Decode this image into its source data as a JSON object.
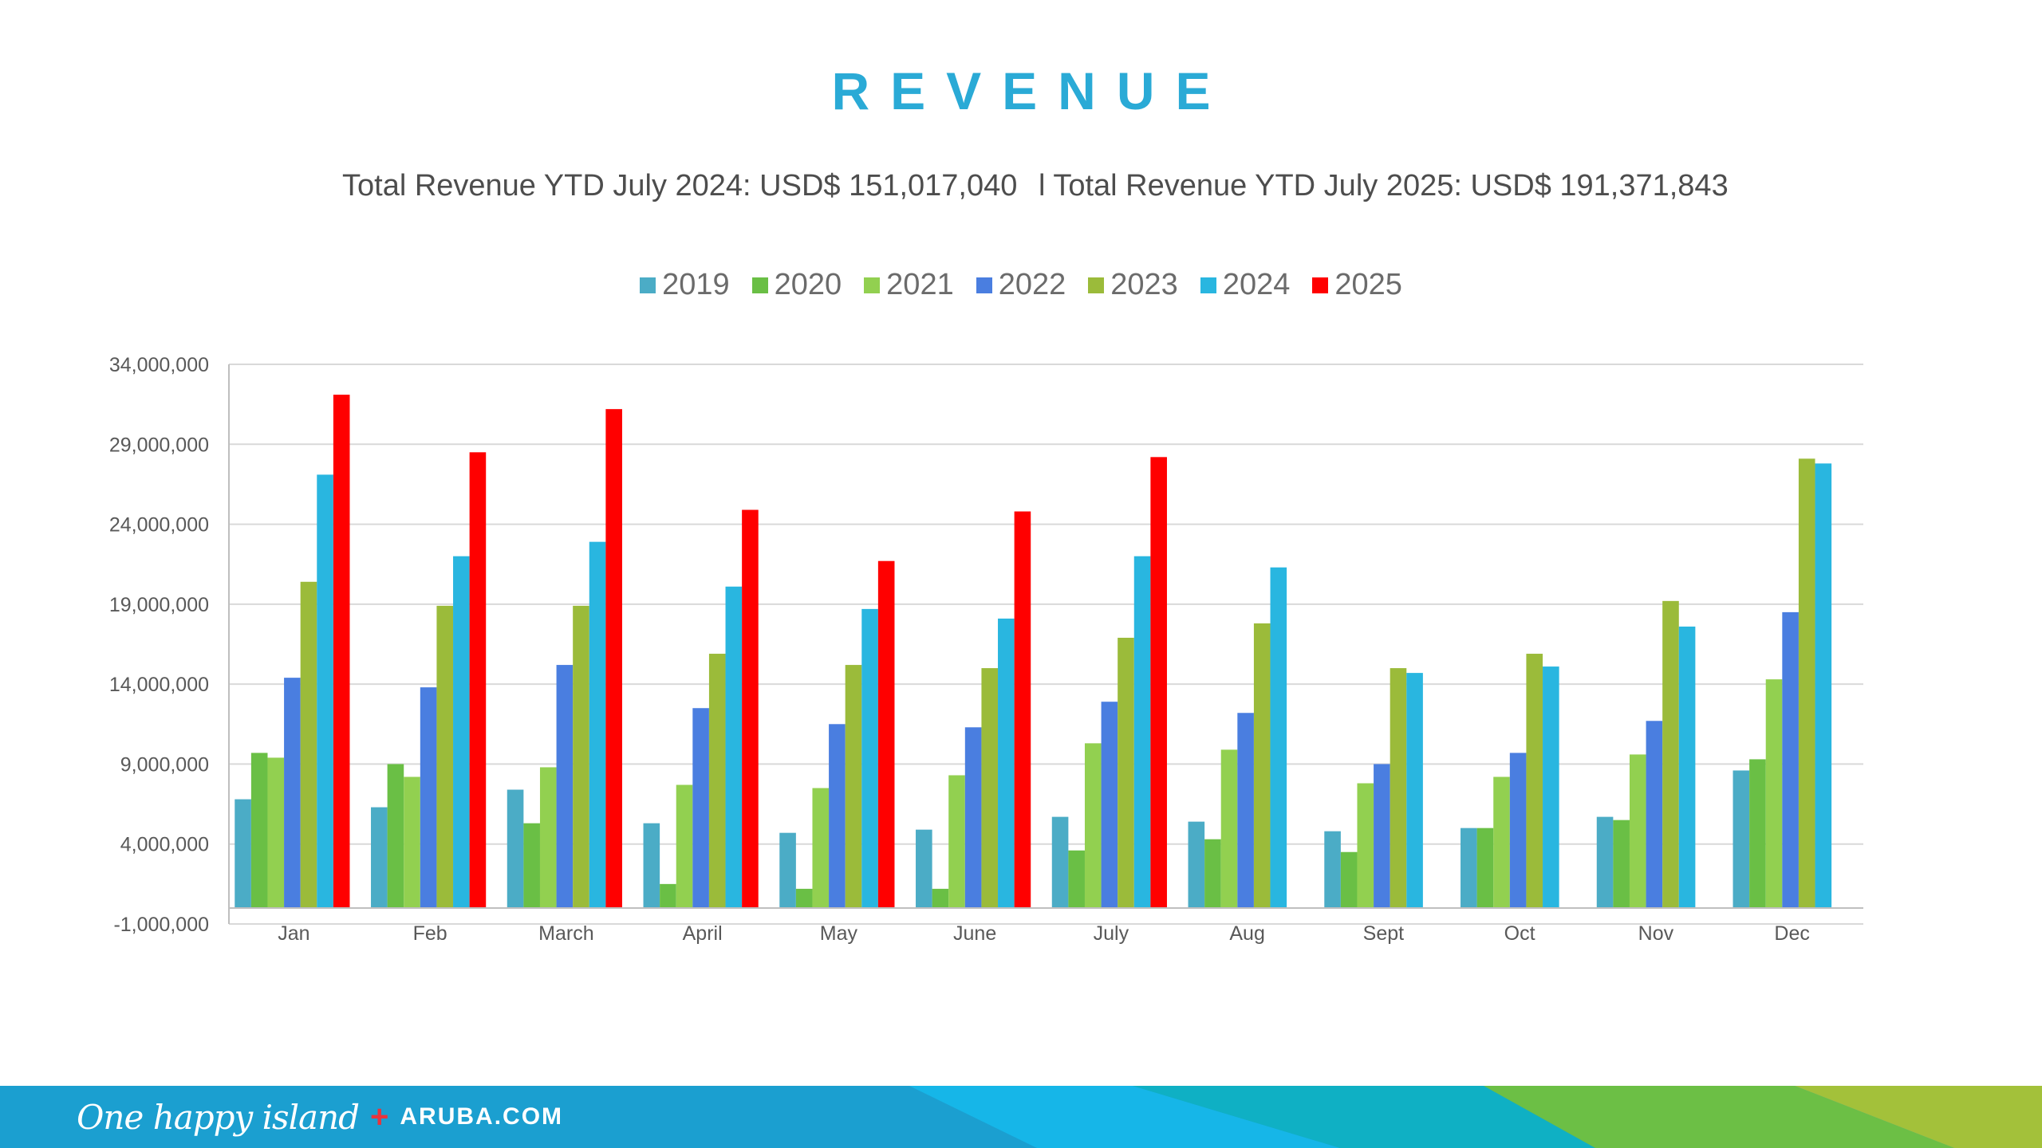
{
  "header": {
    "title": "REVENUE",
    "subtitle_2024": "Total Revenue YTD July 2024: USD$ 151,017,040",
    "subtitle_2025": "l Total Revenue YTD July 2025: USD$ 191,371,843"
  },
  "footer": {
    "tagline": "One happy island",
    "plus_symbol": "+",
    "domain": "ARUBA.COM"
  },
  "colors": {
    "title": "#2aaad6",
    "2019": "#4bacc6",
    "2020": "#6abf45",
    "2021": "#92d050",
    "2022": "#4a7ee0",
    "2023": "#9bbb3a",
    "2024": "#29b6e0",
    "2025": "#ff0000"
  },
  "chart_data": {
    "type": "bar",
    "title": "REVENUE",
    "xlabel": "",
    "ylabel": "",
    "ylim": [
      -1000000,
      34000000
    ],
    "yticks": [
      -1000000,
      4000000,
      9000000,
      14000000,
      19000000,
      24000000,
      29000000,
      34000000
    ],
    "ytick_labels": [
      "-1,000,000",
      "4,000,000",
      "9,000,000",
      "14,000,000",
      "19,000,000",
      "24,000,000",
      "29,000,000",
      "34,000,000"
    ],
    "grid": true,
    "legend_position": "top-center",
    "categories": [
      "Jan",
      "Feb",
      "March",
      "April",
      "May",
      "June",
      "July",
      "Aug",
      "Sept",
      "Oct",
      "Nov",
      "Dec"
    ],
    "series": [
      {
        "name": "2019",
        "values": [
          6800000,
          6300000,
          7400000,
          5300000,
          4700000,
          4900000,
          5700000,
          5400000,
          4800000,
          5000000,
          5700000,
          8600000
        ]
      },
      {
        "name": "2020",
        "values": [
          9700000,
          9000000,
          5300000,
          1500000,
          1200000,
          1200000,
          3600000,
          4300000,
          3500000,
          5000000,
          5500000,
          9300000
        ]
      },
      {
        "name": "2021",
        "values": [
          9400000,
          8200000,
          8800000,
          7700000,
          7500000,
          8300000,
          10300000,
          9900000,
          7800000,
          8200000,
          9600000,
          14300000
        ]
      },
      {
        "name": "2022",
        "values": [
          14400000,
          13800000,
          15200000,
          12500000,
          11500000,
          11300000,
          12900000,
          12200000,
          9000000,
          9700000,
          11700000,
          18500000
        ]
      },
      {
        "name": "2023",
        "values": [
          20400000,
          18900000,
          18900000,
          15900000,
          15200000,
          15000000,
          16900000,
          17800000,
          15000000,
          15900000,
          19200000,
          28100000
        ]
      },
      {
        "name": "2024",
        "values": [
          27100000,
          22000000,
          22900000,
          20100000,
          18700000,
          18100000,
          22000000,
          21300000,
          14700000,
          15100000,
          17600000,
          27800000
        ]
      },
      {
        "name": "2025",
        "values": [
          32100000,
          28500000,
          31200000,
          24900000,
          21700000,
          24800000,
          28200000,
          null,
          null,
          null,
          null,
          null
        ]
      }
    ]
  }
}
